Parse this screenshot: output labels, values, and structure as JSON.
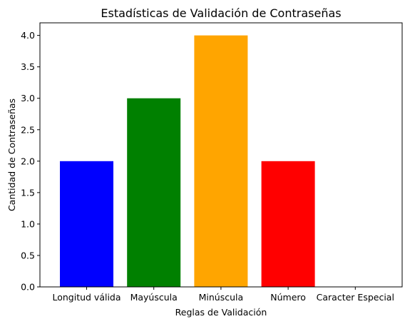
{
  "chart_data": {
    "type": "bar",
    "title": "Estadísticas de Validación de Contraseñas",
    "xlabel": "Reglas de Validación",
    "ylabel": "Cantidad de Contraseñas",
    "categories": [
      "Longitud válida",
      "Mayúscula",
      "Minúscula",
      "Número",
      "Caracter Especial"
    ],
    "values": [
      2,
      3,
      4,
      2,
      0
    ],
    "colors": [
      "#0000ff",
      "#008000",
      "#ffa500",
      "#ff0000",
      "#800080"
    ],
    "ylim": [
      0,
      4.2
    ],
    "yticks": [
      "0.0",
      "0.5",
      "1.0",
      "1.5",
      "2.0",
      "2.5",
      "3.0",
      "3.5",
      "4.0"
    ],
    "grid": false,
    "legend": "none"
  }
}
